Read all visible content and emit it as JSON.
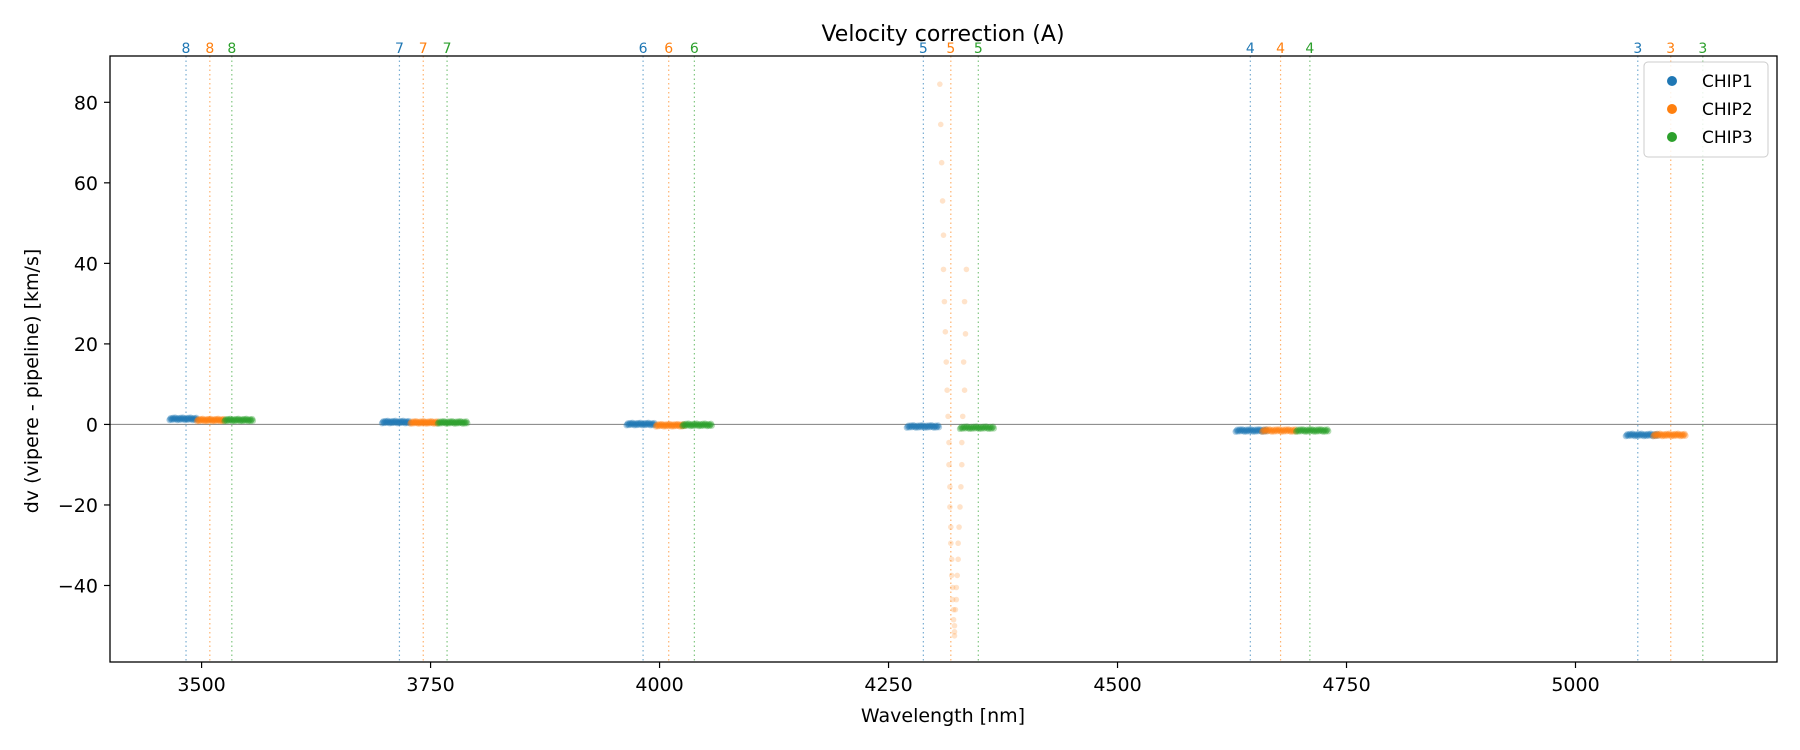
{
  "chart_data": {
    "type": "scatter",
    "title": "Velocity correction (A)",
    "xlabel": "Wavelength [nm]",
    "ylabel": "dv (vipere - pipeline) [km/s]",
    "xlim": [
      3400,
      5220
    ],
    "ylim": [
      -59,
      91.5
    ],
    "xticks": [
      3500,
      3750,
      4000,
      4250,
      4500,
      4750,
      5000
    ],
    "yticks": [
      -40,
      -20,
      0,
      20,
      40,
      60,
      80
    ],
    "zero_line": true,
    "grid": false,
    "legend": {
      "position": "top-right",
      "entries": [
        "CHIP1",
        "CHIP2",
        "CHIP3"
      ]
    },
    "colors": {
      "CHIP1": "#1f77b4",
      "CHIP2": "#ff7f0e",
      "CHIP3": "#2ca02c",
      "zero_line": "#808080"
    },
    "order_markers": [
      {
        "order": "8",
        "positions": {
          "CHIP1": 3483,
          "CHIP2": 3509,
          "CHIP3": 3533
        }
      },
      {
        "order": "7",
        "positions": {
          "CHIP1": 3716,
          "CHIP2": 3742,
          "CHIP3": 3768
        }
      },
      {
        "order": "6",
        "positions": {
          "CHIP1": 3982,
          "CHIP2": 4010,
          "CHIP3": 4038
        }
      },
      {
        "order": "5",
        "positions": {
          "CHIP1": 4288,
          "CHIP2": 4318,
          "CHIP3": 4348
        }
      },
      {
        "order": "4",
        "positions": {
          "CHIP1": 4645,
          "CHIP2": 4678,
          "CHIP3": 4710
        }
      },
      {
        "order": "3",
        "positions": {
          "CHIP1": 5068,
          "CHIP2": 5104,
          "CHIP3": 5139
        }
      }
    ],
    "series": [
      {
        "name": "CHIP1",
        "clusters": [
          {
            "x_range": [
              3465,
              3495
            ],
            "y": 1.4
          },
          {
            "x_range": [
              3697,
              3727
            ],
            "y": 0.6
          },
          {
            "x_range": [
              3964,
              3995
            ],
            "y": 0.1
          },
          {
            "x_range": [
              4270,
              4305
            ],
            "y": -0.5
          },
          {
            "x_range": [
              4629,
              4663
            ],
            "y": -1.5
          },
          {
            "x_range": [
              5055,
              5090
            ],
            "y": -2.6
          }
        ]
      },
      {
        "name": "CHIP2",
        "clusters": [
          {
            "x_range": [
              3495,
              3525
            ],
            "y": 1.1
          },
          {
            "x_range": [
              3728,
              3758
            ],
            "y": 0.5
          },
          {
            "x_range": [
              3996,
              4027
            ],
            "y": -0.2
          },
          {
            "x_range": [
              4658,
              4695
            ],
            "y": -1.5
          },
          {
            "x_range": [
              5085,
              5120
            ],
            "y": -2.6
          }
        ],
        "scattered_points": [
          [
            4306,
            84.5
          ],
          [
            4307,
            74.5
          ],
          [
            4308,
            65
          ],
          [
            4309,
            55.5
          ],
          [
            4310,
            47
          ],
          [
            4310,
            38.5
          ],
          [
            4335,
            38.5
          ],
          [
            4311,
            30.5
          ],
          [
            4333,
            30.5
          ],
          [
            4312,
            23
          ],
          [
            4334,
            22.5
          ],
          [
            4313,
            15.5
          ],
          [
            4332,
            15.5
          ],
          [
            4314,
            8.5
          ],
          [
            4333,
            8.5
          ],
          [
            4315,
            2
          ],
          [
            4331,
            2
          ],
          [
            4316,
            -4.5
          ],
          [
            4330,
            -4.5
          ],
          [
            4316,
            -10
          ],
          [
            4330,
            -10
          ],
          [
            4317,
            -15.5
          ],
          [
            4329,
            -15.5
          ],
          [
            4317,
            -20.5
          ],
          [
            4328,
            -20.5
          ],
          [
            4318,
            -25.5
          ],
          [
            4327,
            -25.5
          ],
          [
            4318,
            -29.5
          ],
          [
            4326,
            -29.5
          ],
          [
            4319,
            -33.5
          ],
          [
            4326,
            -33.5
          ],
          [
            4319,
            -37.5
          ],
          [
            4325,
            -37.5
          ],
          [
            4320,
            -40.5
          ],
          [
            4324,
            -40.5
          ],
          [
            4320,
            -43.5
          ],
          [
            4324,
            -43.5
          ],
          [
            4321,
            -46
          ],
          [
            4323,
            -46
          ],
          [
            4321,
            -48.5
          ],
          [
            4322,
            -50
          ],
          [
            4322,
            -51.5
          ],
          [
            4322,
            -52.5
          ]
        ]
      },
      {
        "name": "CHIP3",
        "clusters": [
          {
            "x_range": [
              3525,
              3556
            ],
            "y": 1.1
          },
          {
            "x_range": [
              3758,
              3790
            ],
            "y": 0.5
          },
          {
            "x_range": [
              4025,
              4057
            ],
            "y": -0.1
          },
          {
            "x_range": [
              4328,
              4365
            ],
            "y": -0.8
          },
          {
            "x_range": [
              4695,
              4730
            ],
            "y": -1.5
          }
        ]
      }
    ]
  }
}
